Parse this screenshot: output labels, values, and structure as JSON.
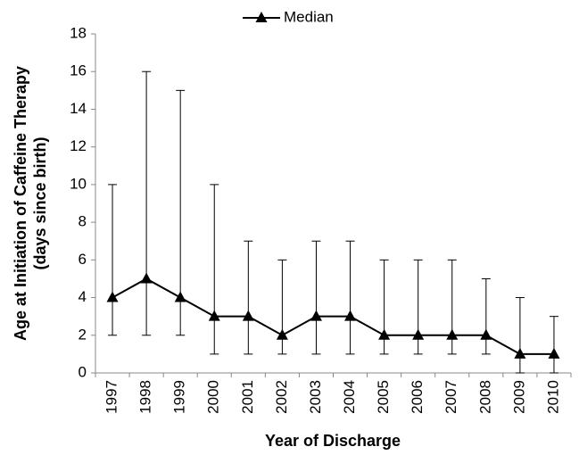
{
  "chart_data": {
    "type": "line",
    "xlabel": "Year of Discharge",
    "ylabel": [
      "Age at Initiation of Caffeine Therapy",
      "(days since birth)"
    ],
    "categories": [
      "1997",
      "1998",
      "1999",
      "2000",
      "2001",
      "2002",
      "2003",
      "2004",
      "2005",
      "2006",
      "2007",
      "2008",
      "2009",
      "2010"
    ],
    "series": [
      {
        "name": "Median",
        "color": "#000000",
        "values": [
          4,
          5,
          4,
          3,
          3,
          2,
          3,
          3,
          2,
          2,
          2,
          2,
          1,
          1
        ],
        "error_low": [
          2,
          2,
          2,
          1,
          1,
          1,
          1,
          1,
          1,
          1,
          1,
          1,
          0,
          0
        ],
        "error_high": [
          10,
          16,
          15,
          10,
          7,
          6,
          7,
          7,
          6,
          6,
          6,
          5,
          4,
          3
        ]
      }
    ],
    "ylim": [
      0,
      18
    ],
    "yticks": [
      0,
      2,
      4,
      6,
      8,
      10,
      12,
      14,
      16,
      18
    ],
    "legend": "top",
    "grid": false
  }
}
